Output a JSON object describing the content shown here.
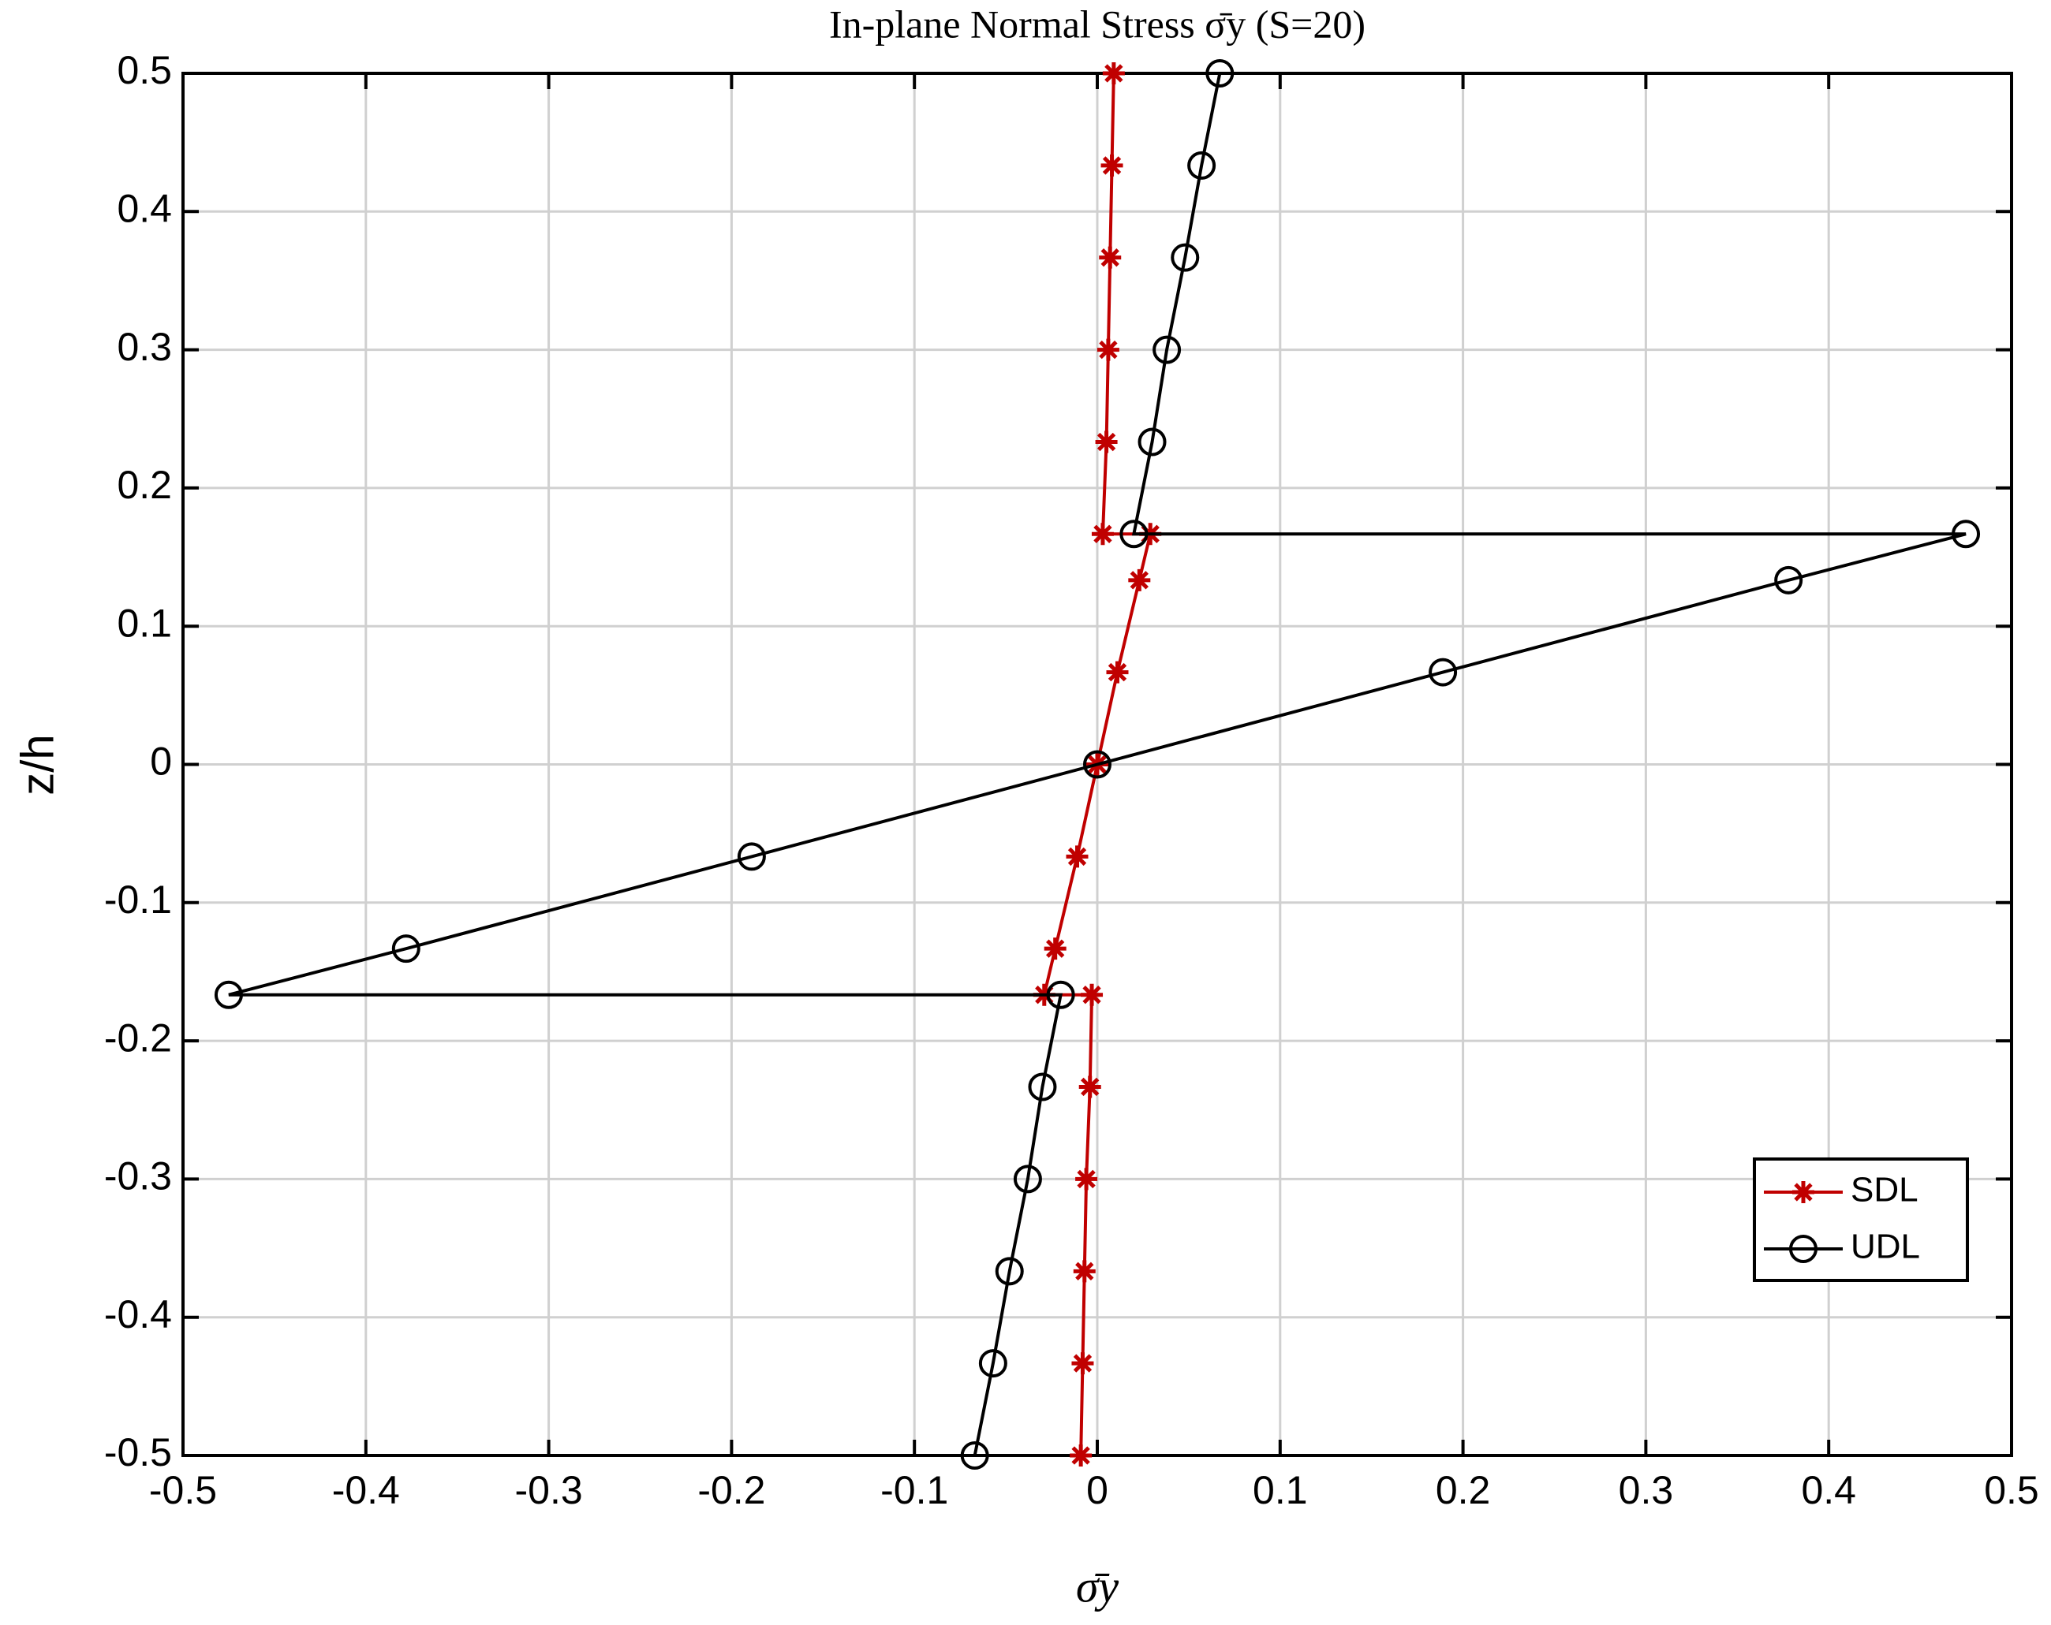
{
  "chart_data": {
    "type": "line",
    "title": "In-plane Normal Stress σ̄y (S=20)",
    "x_label": "σ̄y",
    "y_label": "z/h",
    "xlim": [
      -0.5,
      0.5
    ],
    "ylim": [
      -0.5,
      0.5
    ],
    "xticks": [
      -0.5,
      -0.4,
      -0.3,
      -0.2,
      -0.1,
      0,
      0.1,
      0.2,
      0.3,
      0.4,
      0.5
    ],
    "yticks": [
      -0.5,
      -0.4,
      -0.3,
      -0.2,
      -0.1,
      0,
      0.1,
      0.2,
      0.3,
      0.4,
      0.5
    ],
    "grid": true,
    "legend": "lower right",
    "series": [
      {
        "name": "SDL",
        "color": "#c00000",
        "marker": "star",
        "x": [
          -0.009,
          -0.008,
          -0.007,
          -0.006,
          -0.004,
          -0.003,
          -0.029,
          -0.023,
          -0.011,
          0,
          0.011,
          0.023,
          0.029,
          0.003,
          0.005,
          0.006,
          0.007,
          0.008,
          0.009
        ],
        "values": [
          -0.5,
          -0.4333,
          -0.3667,
          -0.3,
          -0.2333,
          -0.1667,
          -0.1667,
          -0.1333,
          -0.0667,
          0,
          0.0667,
          0.1333,
          0.1667,
          0.1667,
          0.2333,
          0.3,
          0.3667,
          0.4333,
          0.5
        ]
      },
      {
        "name": "UDL",
        "color": "#000000",
        "marker": "circle",
        "x": [
          -0.067,
          -0.057,
          -0.048,
          -0.038,
          -0.03,
          -0.02,
          -0.475,
          -0.378,
          -0.189,
          0,
          0.189,
          0.378,
          0.475,
          0.02,
          0.03,
          0.038,
          0.048,
          0.057,
          0.067
        ],
        "values": [
          -0.5,
          -0.4333,
          -0.3667,
          -0.3,
          -0.2333,
          -0.1667,
          -0.1667,
          -0.1333,
          -0.0667,
          0,
          0.0667,
          0.1333,
          0.1667,
          0.1667,
          0.2333,
          0.3,
          0.3667,
          0.4333,
          0.5
        ]
      }
    ]
  }
}
